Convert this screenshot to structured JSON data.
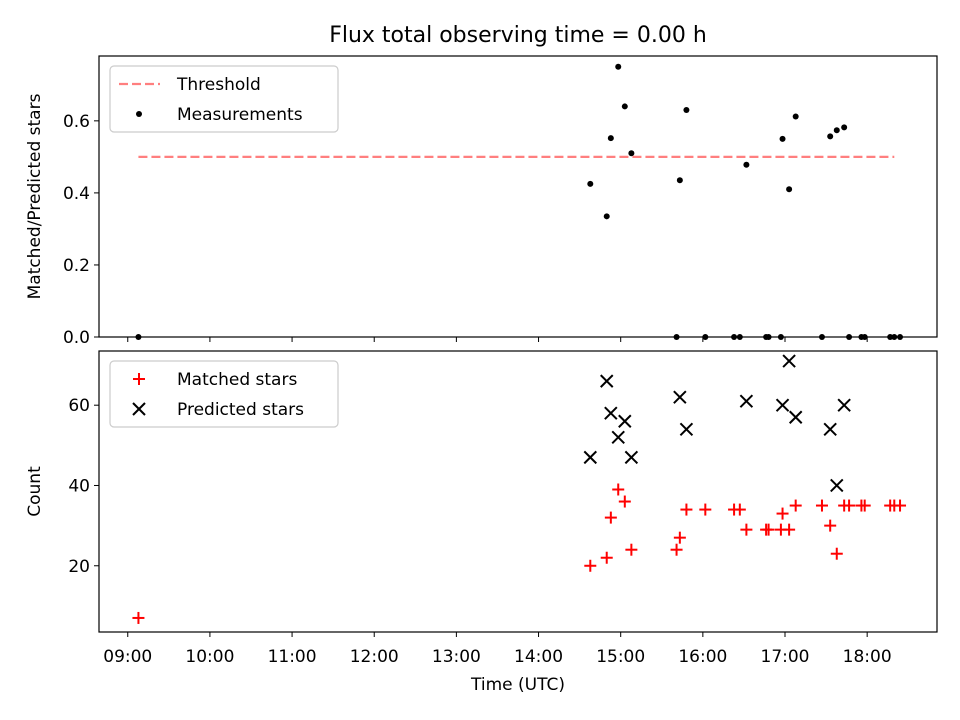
{
  "figure": {
    "title": "Flux total observing time = 0.00 h"
  },
  "colors": {
    "threshold": "#ff7f7f",
    "measurements": "#000000",
    "matched": "#ff0000",
    "predicted": "#000000"
  },
  "chart_data": [
    {
      "type": "scatter",
      "panel": "top",
      "ylabel": "Matched/Predicted stars",
      "xlabel": "",
      "ylim": [
        0,
        0.78
      ],
      "yticks": [
        0.0,
        0.2,
        0.4,
        0.6
      ],
      "ytick_labels": [
        "0.0",
        "0.2",
        "0.4",
        "0.6"
      ],
      "xlim": [
        8.65,
        18.85
      ],
      "legend_position": "top-left",
      "threshold": {
        "name": "Threshold",
        "value": 0.5,
        "x_range": [
          9.13,
          18.33
        ],
        "style": "dashed"
      },
      "series": [
        {
          "name": "Measurements",
          "marker": "dot",
          "x": [
            9.13,
            14.63,
            14.83,
            14.88,
            14.97,
            15.05,
            15.13,
            15.68,
            15.72,
            15.8,
            16.03,
            16.38,
            16.45,
            16.53,
            16.77,
            16.8,
            16.95,
            16.97,
            17.05,
            17.13,
            17.45,
            17.55,
            17.63,
            17.72,
            17.78,
            17.93,
            17.97,
            18.28,
            18.33,
            18.4
          ],
          "y": [
            0.0,
            0.425,
            0.335,
            0.552,
            0.75,
            0.64,
            0.51,
            0.0,
            0.435,
            0.63,
            0.0,
            0.0,
            0.0,
            0.478,
            0.0,
            0.0,
            0.0,
            0.55,
            0.41,
            0.612,
            0.0,
            0.557,
            0.574,
            0.582,
            0.0,
            0.0,
            0.0,
            0.0,
            0.0,
            0.0
          ]
        }
      ]
    },
    {
      "type": "scatter",
      "panel": "bottom",
      "ylabel": "Count",
      "xlabel": "Time (UTC)",
      "ylim": [
        3.5,
        73.5
      ],
      "yticks": [
        20,
        40,
        60
      ],
      "ytick_labels": [
        "20",
        "40",
        "60"
      ],
      "xlim": [
        8.65,
        18.85
      ],
      "xticks": [
        9,
        10,
        11,
        12,
        13,
        14,
        15,
        16,
        17,
        18
      ],
      "xtick_labels": [
        "09:00",
        "10:00",
        "11:00",
        "12:00",
        "13:00",
        "14:00",
        "15:00",
        "16:00",
        "17:00",
        "18:00"
      ],
      "legend_position": "top-left",
      "series": [
        {
          "name": "Matched stars",
          "marker": "plus",
          "x": [
            9.13,
            14.63,
            14.83,
            14.88,
            14.97,
            15.05,
            15.13,
            15.68,
            15.72,
            15.8,
            16.03,
            16.38,
            16.45,
            16.53,
            16.77,
            16.8,
            16.95,
            16.97,
            17.05,
            17.13,
            17.45,
            17.55,
            17.63,
            17.72,
            17.78,
            17.93,
            17.97,
            18.28,
            18.33,
            18.4
          ],
          "y": [
            7,
            20,
            22,
            32,
            39,
            36,
            24,
            24,
            27,
            34,
            34,
            34,
            34,
            29,
            29,
            29,
            29,
            33,
            29,
            35,
            35,
            30,
            23,
            35,
            35,
            35,
            35,
            35,
            35,
            35
          ]
        },
        {
          "name": "Predicted stars",
          "marker": "x",
          "x": [
            14.63,
            14.83,
            14.88,
            14.97,
            15.05,
            15.13,
            15.72,
            15.8,
            16.53,
            16.97,
            17.05,
            17.13,
            17.55,
            17.63,
            17.72
          ],
          "y": [
            47,
            66,
            58,
            52,
            56,
            47,
            62,
            54,
            61,
            60,
            71,
            57,
            54,
            40,
            60
          ]
        }
      ]
    }
  ]
}
